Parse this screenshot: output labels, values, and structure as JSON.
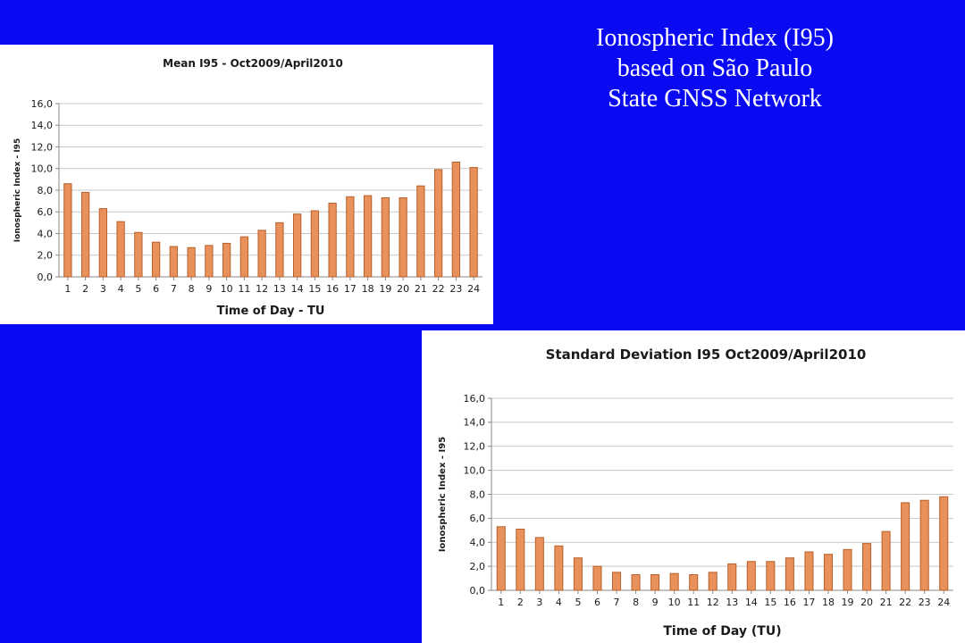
{
  "slide": {
    "title_lines": [
      "Ionospheric Index (I95)",
      "based on São Paulo",
      "State GNSS Network"
    ]
  },
  "colors": {
    "background": "#0a0af2",
    "bar_fill": "#e8915a",
    "bar_stroke": "#b8602c",
    "grid": "#c8c8c8",
    "text": "#1a1a1a"
  },
  "chart_data": [
    {
      "type": "bar",
      "title": "Mean I95 - Oct2009/April2010",
      "xlabel": "Time of Day - TU",
      "ylabel": "Ionospheric Index - I95",
      "ylim": [
        0,
        16
      ],
      "yticks": [
        "0,0",
        "2,0",
        "4,0",
        "6,0",
        "8,0",
        "10,0",
        "12,0",
        "14,0",
        "16,0"
      ],
      "grid": true,
      "categories": [
        "1",
        "2",
        "3",
        "4",
        "5",
        "6",
        "7",
        "8",
        "9",
        "10",
        "11",
        "12",
        "13",
        "14",
        "15",
        "16",
        "17",
        "18",
        "19",
        "20",
        "21",
        "22",
        "23",
        "24"
      ],
      "values": [
        8.6,
        7.8,
        6.3,
        5.1,
        4.1,
        3.2,
        2.8,
        2.7,
        2.9,
        3.1,
        3.7,
        4.3,
        5.0,
        5.8,
        6.1,
        6.8,
        7.4,
        7.5,
        7.3,
        7.3,
        8.4,
        9.9,
        10.6,
        10.1
      ]
    },
    {
      "type": "bar",
      "title": "Standard Deviation I95   Oct2009/April2010",
      "xlabel": "Time of Day (TU)",
      "ylabel": "Ionospheric Index - I95",
      "ylim": [
        0,
        16
      ],
      "yticks": [
        "0,0",
        "2,0",
        "4,0",
        "6,0",
        "8,0",
        "10,0",
        "12,0",
        "14,0",
        "16,0"
      ],
      "grid": true,
      "categories": [
        "1",
        "2",
        "3",
        "4",
        "5",
        "6",
        "7",
        "8",
        "9",
        "10",
        "11",
        "12",
        "13",
        "14",
        "15",
        "16",
        "17",
        "18",
        "19",
        "20",
        "21",
        "22",
        "23",
        "24"
      ],
      "values": [
        5.3,
        5.1,
        4.4,
        3.7,
        2.7,
        2.0,
        1.5,
        1.3,
        1.3,
        1.4,
        1.3,
        1.5,
        2.2,
        2.4,
        2.4,
        2.7,
        3.2,
        3.0,
        3.4,
        3.9,
        4.9,
        7.3,
        7.5,
        7.8
      ]
    }
  ]
}
